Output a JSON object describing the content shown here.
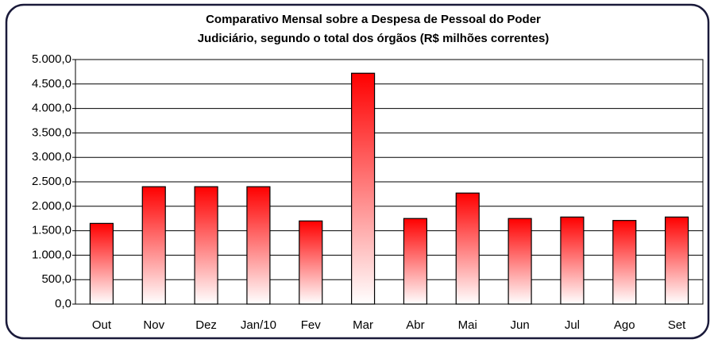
{
  "chart_data": {
    "type": "bar",
    "title": [
      "Comparativo Mensal sobre a Despesa de Pessoal do Poder",
      "Judiciário, segundo o total dos órgãos (R$ milhões correntes)"
    ],
    "categories": [
      "Out",
      "Nov",
      "Dez",
      "Jan/10",
      "Fev",
      "Mar",
      "Abr",
      "Mai",
      "Jun",
      "Jul",
      "Ago",
      "Set"
    ],
    "values": [
      1650,
      2400,
      2400,
      2400,
      1700,
      4720,
      1750,
      2270,
      1750,
      1780,
      1710,
      1780
    ],
    "color": "#ff0000",
    "ylim": [
      0,
      5000
    ],
    "yticks": [
      {
        "value": 0,
        "label": "0,0"
      },
      {
        "value": 500,
        "label": "500,0"
      },
      {
        "value": 1000,
        "label": "1.000,0"
      },
      {
        "value": 1500,
        "label": "1.500,0"
      },
      {
        "value": 2000,
        "label": "2.000,0"
      },
      {
        "value": 2500,
        "label": "2.500,0"
      },
      {
        "value": 3000,
        "label": "3.000,0"
      },
      {
        "value": 3500,
        "label": "3.500,0"
      },
      {
        "value": 4000,
        "label": "4.000,0"
      },
      {
        "value": 4500,
        "label": "4.500,0"
      },
      {
        "value": 5000,
        "label": "5.000,0"
      }
    ],
    "grid": true
  }
}
